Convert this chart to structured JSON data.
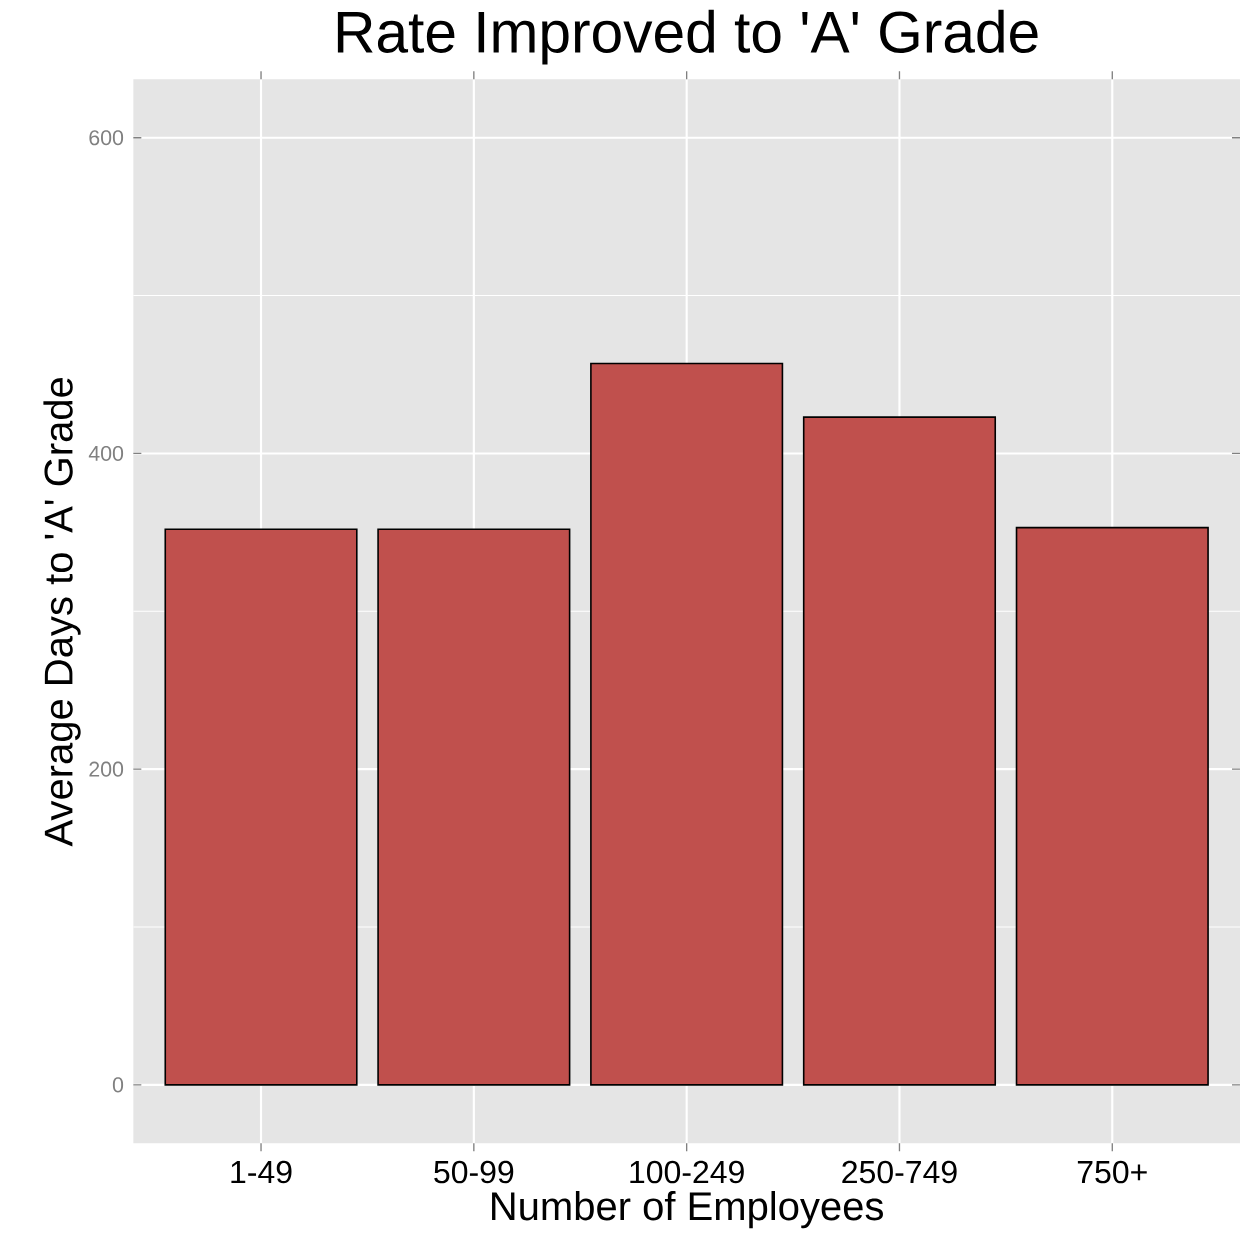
{
  "chart_data": {
    "type": "bar",
    "title": "Rate Improved to 'A' Grade",
    "xlabel": "Number of Employees",
    "ylabel": "Average Days to 'A' Grade",
    "categories": [
      "1-49",
      "50-99",
      "100-249",
      "250-749",
      "750+"
    ],
    "values": [
      352,
      352,
      457,
      423,
      353
    ],
    "color": "#c0504d",
    "ylim": [
      -37,
      637
    ],
    "yticks": [
      0,
      200,
      400,
      600
    ],
    "grid": true
  }
}
